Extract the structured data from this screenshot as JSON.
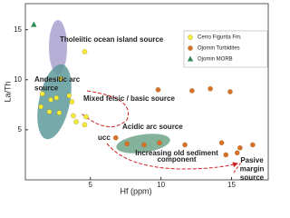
{
  "chart_data": {
    "type": "scatter",
    "x_label": "Hf (ppm)",
    "y_label": "La/Th",
    "xlim": [
      0.4,
      17.6
    ],
    "ylim": [
      0,
      17.6
    ],
    "xticks": [
      5,
      10,
      15
    ],
    "yticks": [
      5,
      10,
      15
    ],
    "legend": "top-right",
    "series": [
      {
        "name": "Cerro Figurita Fm.",
        "color": "#f5ec3a",
        "marker": "circle",
        "x": [
          4.6,
          2.9,
          1.6,
          2.2,
          2.6,
          3.5,
          1.5,
          2.1,
          2.8,
          3.7,
          3.8,
          4.0,
          4.7,
          4.6
        ],
        "values": [
          12.8,
          10.1,
          8.6,
          8.0,
          8.2,
          8.4,
          7.3,
          6.8,
          6.7,
          7.8,
          6.4,
          5.8,
          6.3,
          5.5
        ]
      },
      {
        "name": "Ojomin Turbidites",
        "color": "#d9702a",
        "marker": "circle",
        "x": [
          6.8,
          7.6,
          8.8,
          9.9,
          9.8,
          12.2,
          13.5,
          14.9,
          14.3,
          14.6,
          15.6,
          16.5,
          11.7,
          15.4
        ],
        "values": [
          4.2,
          3.6,
          3.5,
          3.7,
          9.0,
          8.9,
          9.1,
          8.8,
          3.7,
          2.5,
          3.2,
          3.5,
          3.5,
          2.7
        ]
      },
      {
        "name": "Ojomin MORB",
        "color": "#2e8b57",
        "marker": "triangle",
        "x": [
          1.0
        ],
        "values": [
          15.5
        ]
      }
    ],
    "annotations": [
      {
        "text": [
          "Tholeiitic ocean island source"
        ]
      },
      {
        "text": [
          "Andesitic arc",
          "source"
        ]
      },
      {
        "text": [
          "Mixed felsic / basic source"
        ]
      },
      {
        "text": [
          "Acidic arc source"
        ]
      },
      {
        "text": [
          "ucc"
        ]
      },
      {
        "text": [
          "Increasing old sediment",
          "component"
        ]
      },
      {
        "text": [
          "Pasive",
          "margin",
          "source"
        ]
      }
    ]
  }
}
